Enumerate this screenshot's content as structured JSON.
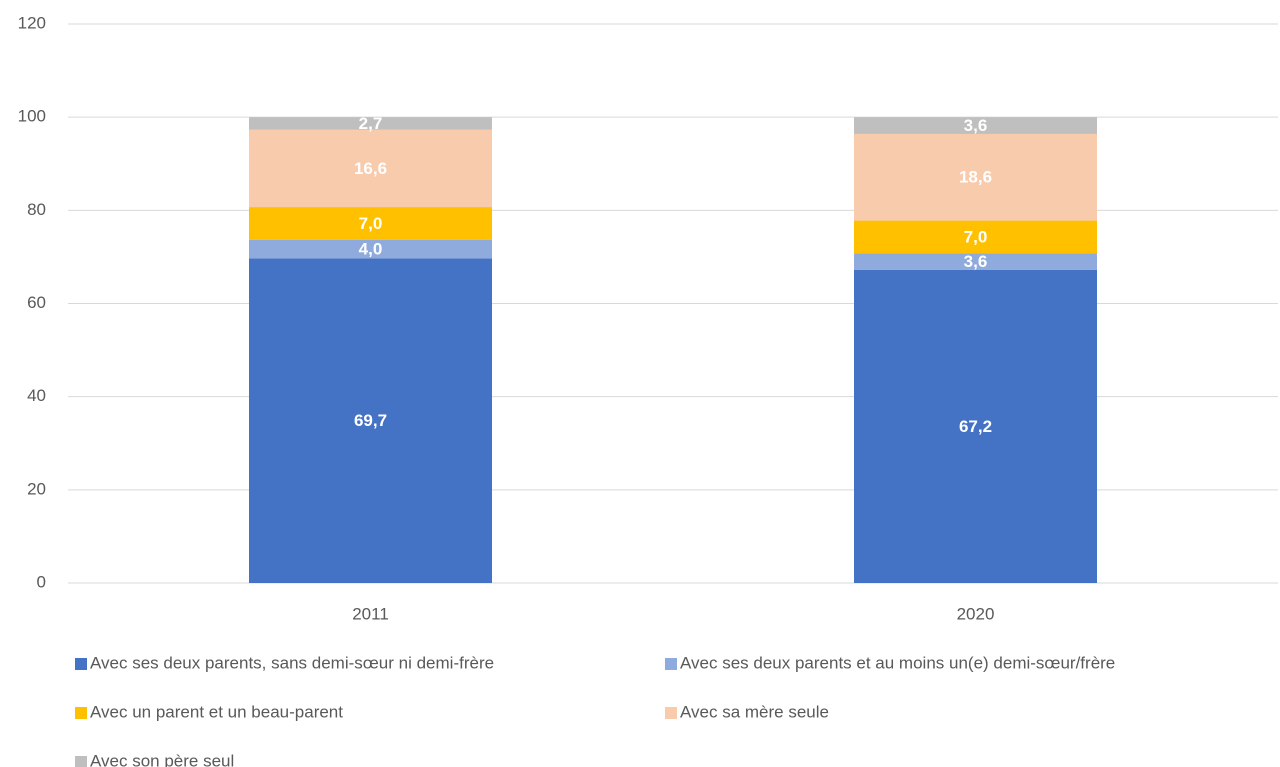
{
  "chart_data": {
    "type": "stacked_bar",
    "categories": [
      "2011",
      "2020"
    ],
    "series": [
      {
        "name": "Avec ses deux parents, sans demi-sœur ni demi-frère",
        "color": "#4472c4",
        "values": [
          69.7,
          67.2
        ],
        "value_labels": [
          "69,7",
          "67,2"
        ]
      },
      {
        "name": "Avec ses deux parents et au moins un(e) demi-sœur/frère",
        "color": "#8faadc",
        "values": [
          4.0,
          3.6
        ],
        "value_labels": [
          "4,0",
          "3,6"
        ]
      },
      {
        "name": "Avec un parent et un beau-parent",
        "color": "#ffc000",
        "values": [
          7.0,
          7.0
        ],
        "value_labels": [
          "7,0",
          "7,0"
        ]
      },
      {
        "name": "Avec sa mère seule",
        "color": "#f8cbad",
        "values": [
          16.6,
          18.6
        ],
        "value_labels": [
          "16,6",
          "18,6"
        ]
      },
      {
        "name": "Avec son père seul",
        "color": "#bfbfbf",
        "values": [
          2.7,
          3.6
        ],
        "value_labels": [
          "2,7",
          "3,6"
        ]
      }
    ],
    "ylim": [
      0,
      120
    ],
    "yticks": [
      0,
      20,
      40,
      60,
      80,
      100,
      120
    ],
    "grid": true
  }
}
